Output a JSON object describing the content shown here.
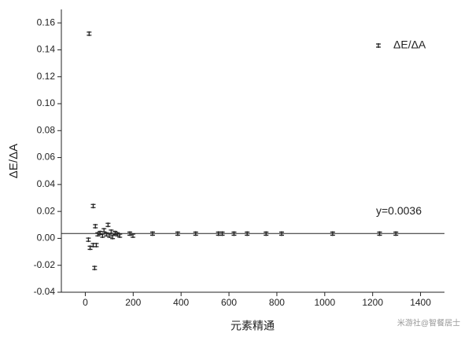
{
  "chart_data": {
    "type": "scatter",
    "x_label": "元素精通",
    "y_label": "ΔE/ΔA",
    "series": [
      {
        "name": "ΔE/ΔA",
        "color": "#222222",
        "x": [
          16,
          13,
          20,
          33,
          33,
          42,
          39,
          46,
          52,
          62,
          72,
          78,
          88,
          95,
          101,
          108,
          114,
          124,
          134,
          144,
          186,
          199,
          281,
          386,
          461,
          556,
          572,
          621,
          676,
          755,
          820,
          1033,
          1229,
          1297
        ],
        "values": [
          0.152,
          -0.001,
          -0.007,
          0.024,
          -0.005,
          0.009,
          -0.022,
          -0.005,
          0.003,
          0.004,
          0.002,
          0.006,
          0.003,
          0.01,
          0.002,
          0.005,
          0.001,
          0.004,
          0.003,
          0.002,
          0.0035,
          0.002,
          0.0035,
          0.0035,
          0.0035,
          0.0035,
          0.0035,
          0.0035,
          0.0035,
          0.0035,
          0.0035,
          0.0035,
          0.0035,
          0.0035
        ]
      }
    ],
    "hline": 0.0036,
    "annotation": "y=0.0036",
    "xlim": [
      -100,
      1500
    ],
    "ylim": [
      -0.04,
      0.17
    ],
    "xticks": [
      0,
      200,
      400,
      600,
      800,
      1000,
      1200,
      1400
    ],
    "yticks": [
      -0.04,
      -0.02,
      {
        "value": 0,
        "label": "0.00"
      },
      0.02,
      0.04,
      0.06,
      0.08,
      {
        "value": 0.1,
        "label": "0.10"
      },
      0.12,
      0.14,
      0.16
    ],
    "legend": "upper right",
    "watermark": "米游社@智餐居士"
  }
}
